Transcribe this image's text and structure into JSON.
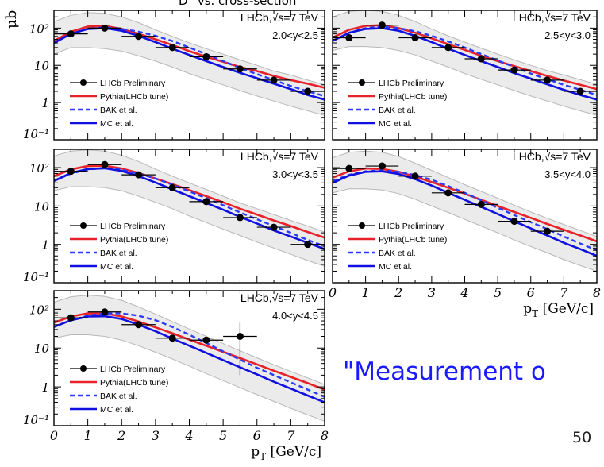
{
  "page": {
    "header_text": "D° vs. cross-section",
    "y_unit": "μb",
    "quote": "\"Measurement o",
    "page_number": "50"
  },
  "colors": {
    "data": "#000000",
    "pythia": "#e8222a",
    "bak": "#2a3bff",
    "mc": "#1010e0",
    "band": "#d9d9d9"
  },
  "chart_data": [
    {
      "type": "line",
      "title": "LHCb,√s=7 TeV",
      "y_range_label": "2.0<y<2.5",
      "xlabel": "",
      "ylabel": "μb",
      "xlim": [
        0,
        8
      ],
      "ylim": [
        0.1,
        300
      ],
      "log_y": true,
      "x_ticks": [],
      "y_ticks": [
        "10²",
        "10",
        "1",
        "10⁻¹"
      ],
      "legend": [
        "LHCb Preliminary",
        "Pythia(LHCb tune)",
        "BAK et al.",
        "MC et al."
      ],
      "series": [
        {
          "name": "LHCb Preliminary",
          "x": [
            0.5,
            1.5,
            2.5,
            3.5,
            4.5,
            5.5,
            6.5,
            7.5
          ],
          "y": [
            70,
            100,
            60,
            30,
            17,
            8,
            4,
            2
          ],
          "x_err": 0.5
        },
        {
          "name": "Pythia(LHCb tune)",
          "x": [
            0,
            0.5,
            1,
            1.5,
            2,
            2.5,
            3,
            3.5,
            4,
            4.5,
            5,
            5.5,
            6,
            6.5,
            7,
            7.5,
            8
          ],
          "y": [
            45,
            80,
            110,
            115,
            95,
            70,
            50,
            35,
            24,
            17,
            12.5,
            9,
            7,
            5.2,
            4,
            3.2,
            2.5
          ]
        },
        {
          "name": "BAK et al.",
          "x": [
            0,
            0.5,
            1,
            1.5,
            2,
            2.5,
            3,
            3.5,
            4,
            4.5,
            5,
            5.5,
            6,
            6.5,
            7,
            7.5,
            8
          ],
          "y": [
            40,
            70,
            95,
            105,
            95,
            80,
            62,
            45,
            30,
            20,
            13,
            8.5,
            5.8,
            4,
            2.8,
            2,
            1.5
          ]
        },
        {
          "name": "MC et al.",
          "x": [
            0,
            0.5,
            1,
            1.5,
            2,
            2.5,
            3,
            3.5,
            4,
            4.5,
            5,
            5.5,
            6,
            6.5,
            7,
            7.5,
            8
          ],
          "y": [
            40,
            70,
            95,
            100,
            85,
            62,
            42,
            28,
            19,
            13,
            9,
            6.3,
            4.5,
            3.2,
            2.3,
            1.6,
            1.2
          ]
        }
      ],
      "band": {
        "x": [
          0,
          0.5,
          1,
          1.5,
          2,
          2.5,
          3,
          3.5,
          4,
          4.5,
          5,
          5.5,
          6,
          6.5,
          7,
          7.5,
          8
        ],
        "upper": [
          150,
          220,
          260,
          250,
          200,
          140,
          90,
          60,
          40,
          28,
          20,
          14,
          10,
          7,
          5.5,
          4,
          3
        ],
        "lower": [
          20,
          30,
          30,
          28,
          24,
          18,
          13,
          9,
          6,
          4.2,
          3,
          2.1,
          1.5,
          1.1,
          0.8,
          0.6,
          0.45
        ]
      }
    },
    {
      "type": "line",
      "title": "LHCb,√s=7 TeV",
      "y_range_label": "2.5<y<3.0",
      "xlabel": "",
      "ylabel": "",
      "xlim": [
        0,
        8
      ],
      "ylim": [
        0.1,
        300
      ],
      "log_y": true,
      "x_ticks": [],
      "y_ticks": [],
      "legend": [
        "LHCb Preliminary",
        "Pythia(LHCb tune)",
        "BAK et al.",
        "MC et al."
      ],
      "series": [
        {
          "name": "LHCb Preliminary",
          "x": [
            0.5,
            1.5,
            2.5,
            3.5,
            4.5,
            5.5,
            6.5,
            7.5
          ],
          "y": [
            55,
            120,
            55,
            30,
            15,
            7.5,
            4,
            2
          ],
          "x_err": 0.5
        },
        {
          "name": "Pythia(LHCb tune)",
          "x": [
            0,
            0.5,
            1,
            1.5,
            2,
            2.5,
            3,
            3.5,
            4,
            4.5,
            5,
            5.5,
            6,
            6.5,
            7,
            7.5,
            8
          ],
          "y": [
            55,
            90,
            115,
            120,
            100,
            75,
            53,
            37,
            26,
            18,
            13,
            9.5,
            7,
            5.2,
            3.9,
            3,
            2.3
          ]
        },
        {
          "name": "BAK et al.",
          "x": [
            0,
            0.5,
            1,
            1.5,
            2,
            2.5,
            3,
            3.5,
            4,
            4.5,
            5,
            5.5,
            6,
            6.5,
            7,
            7.5,
            8
          ],
          "y": [
            45,
            75,
            100,
            110,
            100,
            82,
            62,
            44,
            30,
            20,
            13.5,
            9,
            6,
            4.2,
            3,
            2.2,
            1.6
          ]
        },
        {
          "name": "MC et al.",
          "x": [
            0,
            0.5,
            1,
            1.5,
            2,
            2.5,
            3,
            3.5,
            4,
            4.5,
            5,
            5.5,
            6,
            6.5,
            7,
            7.5,
            8
          ],
          "y": [
            45,
            75,
            95,
            100,
            85,
            62,
            42,
            28,
            19,
            13,
            9,
            6.2,
            4.4,
            3.1,
            2.2,
            1.6,
            1.2
          ]
        }
      ],
      "band": {
        "x": [
          0,
          0.5,
          1,
          1.5,
          2,
          2.5,
          3,
          3.5,
          4,
          4.5,
          5,
          5.5,
          6,
          6.5,
          7,
          7.5,
          8
        ],
        "upper": [
          200,
          280,
          300,
          280,
          220,
          150,
          95,
          62,
          42,
          29,
          20,
          14,
          10,
          7.2,
          5.5,
          4.1,
          3.1
        ],
        "lower": [
          25,
          32,
          32,
          30,
          25,
          19,
          13,
          9,
          6,
          4.2,
          3,
          2.1,
          1.5,
          1.1,
          0.8,
          0.6,
          0.45
        ]
      }
    },
    {
      "type": "line",
      "title": "LHCb,√s=7 TeV",
      "y_range_label": "3.0<y<3.5",
      "xlabel": "",
      "ylabel": "",
      "xlim": [
        0,
        8
      ],
      "ylim": [
        0.1,
        300
      ],
      "log_y": true,
      "x_ticks": [],
      "y_ticks": [
        "10²",
        "10",
        "1",
        "10⁻¹"
      ],
      "legend": [
        "LHCb Preliminary",
        "Pythia(LHCb tune)",
        "BAK et al.",
        "MC et al."
      ],
      "series": [
        {
          "name": "LHCb Preliminary",
          "x": [
            0.5,
            1.5,
            2.5,
            3.5,
            4.5,
            5.5,
            6.5,
            7.5
          ],
          "y": [
            80,
            120,
            65,
            30,
            13,
            5,
            2.8,
            1
          ],
          "x_err": 0.5
        },
        {
          "name": "Pythia(LHCb tune)",
          "x": [
            0,
            0.5,
            1,
            1.5,
            2,
            2.5,
            3,
            3.5,
            4,
            4.5,
            5,
            5.5,
            6,
            6.5,
            7,
            7.5,
            8
          ],
          "y": [
            60,
            90,
            110,
            112,
            95,
            72,
            52,
            37,
            26,
            18,
            12.5,
            8.5,
            6,
            4.2,
            3,
            2.1,
            1.5
          ]
        },
        {
          "name": "BAK et al.",
          "x": [
            0,
            0.5,
            1,
            1.5,
            2,
            2.5,
            3,
            3.5,
            4,
            4.5,
            5,
            5.5,
            6,
            6.5,
            7,
            7.5,
            8
          ],
          "y": [
            45,
            70,
            90,
            98,
            88,
            70,
            52,
            36,
            24,
            16,
            10.5,
            6.8,
            4.5,
            3,
            2,
            1.3,
            0.9
          ]
        },
        {
          "name": "MC et al.",
          "x": [
            0,
            0.5,
            1,
            1.5,
            2,
            2.5,
            3,
            3.5,
            4,
            4.5,
            5,
            5.5,
            6,
            6.5,
            7,
            7.5,
            8
          ],
          "y": [
            45,
            72,
            92,
            96,
            82,
            60,
            41,
            27,
            18,
            12,
            8,
            5.2,
            3.5,
            2.3,
            1.6,
            1.1,
            0.75
          ]
        }
      ],
      "band": {
        "x": [
          0,
          0.5,
          1,
          1.5,
          2,
          2.5,
          3,
          3.5,
          4,
          4.5,
          5,
          5.5,
          6,
          6.5,
          7,
          7.5,
          8
        ],
        "upper": [
          200,
          270,
          290,
          270,
          210,
          145,
          92,
          60,
          40,
          27,
          18,
          12,
          8.5,
          6,
          4.2,
          3,
          2.1
        ],
        "lower": [
          25,
          32,
          32,
          30,
          25,
          18,
          12.5,
          8.5,
          5.5,
          3.7,
          2.5,
          1.7,
          1.15,
          0.8,
          0.55,
          0.38,
          0.27
        ]
      }
    },
    {
      "type": "line",
      "title": "LHCb,√s=7 TeV",
      "y_range_label": "3.5<y<4.0",
      "xlabel": "p_T [GeV/c]",
      "ylabel": "",
      "xlim": [
        0,
        8
      ],
      "ylim": [
        0.1,
        300
      ],
      "log_y": true,
      "x_ticks": [
        "0",
        "1",
        "2",
        "3",
        "4",
        "5",
        "6",
        "7",
        "8"
      ],
      "y_ticks": [],
      "legend": [
        "LHCb Preliminary",
        "Pythia(LHCb tune)",
        "BAK et al.",
        "MC et al."
      ],
      "series": [
        {
          "name": "LHCb Preliminary",
          "x": [
            0.5,
            1.5,
            2.5,
            3.5,
            4.5,
            5.5,
            6.5
          ],
          "y": [
            95,
            110,
            60,
            22,
            11,
            4,
            2.2
          ],
          "x_err": 0.5
        },
        {
          "name": "Pythia(LHCb tune)",
          "x": [
            0,
            0.5,
            1,
            1.5,
            2,
            2.5,
            3,
            3.5,
            4,
            4.5,
            5,
            5.5,
            6,
            6.5,
            7,
            7.5,
            8
          ],
          "y": [
            55,
            80,
            95,
            92,
            78,
            58,
            42,
            30,
            21,
            14.5,
            10,
            7,
            4.9,
            3.4,
            2.4,
            1.7,
            1.2
          ]
        },
        {
          "name": "BAK et al.",
          "x": [
            0,
            0.5,
            1,
            1.5,
            2,
            2.5,
            3,
            3.5,
            4,
            4.5,
            5,
            5.5,
            6,
            6.5,
            7,
            7.5,
            8
          ],
          "y": [
            45,
            65,
            80,
            85,
            77,
            64,
            48,
            33,
            22,
            14,
            9,
            5.8,
            3.8,
            2.5,
            1.6,
            1.05,
            0.7
          ]
        },
        {
          "name": "MC et al.",
          "x": [
            0,
            0.5,
            1,
            1.5,
            2,
            2.5,
            3,
            3.5,
            4,
            4.5,
            5,
            5.5,
            6,
            6.5,
            7,
            7.5,
            8
          ],
          "y": [
            40,
            62,
            78,
            80,
            68,
            50,
            34,
            22,
            14.5,
            9.5,
            6.2,
            4,
            2.6,
            1.7,
            1.1,
            0.75,
            0.5
          ]
        }
      ],
      "band": {
        "x": [
          0,
          0.5,
          1,
          1.5,
          2,
          2.5,
          3,
          3.5,
          4,
          4.5,
          5,
          5.5,
          6,
          6.5,
          7,
          7.5,
          8
        ],
        "upper": [
          180,
          250,
          270,
          250,
          195,
          130,
          85,
          55,
          36,
          24,
          16,
          10.5,
          7,
          4.8,
          3.3,
          2.3,
          1.6
        ],
        "lower": [
          22,
          28,
          28,
          26,
          21,
          15,
          10,
          6.8,
          4.5,
          3,
          2,
          1.3,
          0.88,
          0.6,
          0.4,
          0.28,
          0.2
        ]
      }
    },
    {
      "type": "line",
      "title": "LHCb,√s=7 TeV",
      "y_range_label": "4.0<y<4.5",
      "xlabel": "p_T [GeV/c]",
      "ylabel": "",
      "xlim": [
        0,
        8
      ],
      "ylim": [
        0.1,
        300
      ],
      "log_y": true,
      "x_ticks": [
        "0",
        "1",
        "2",
        "3",
        "4",
        "5",
        "6",
        "7",
        "8"
      ],
      "y_ticks": [
        "10²",
        "10",
        "1",
        "10⁻¹"
      ],
      "legend": [
        "LHCb Preliminary",
        "Pythia(LHCb tune)",
        "BAK et al.",
        "MC et al."
      ],
      "series": [
        {
          "name": "LHCb Preliminary",
          "x": [
            0.5,
            1.5,
            2.5,
            3.5,
            4.5,
            5.5
          ],
          "y": [
            60,
            85,
            40,
            18,
            16,
            20
          ],
          "x_err": 0.5,
          "y_err_lo": [
            0,
            0,
            0,
            0,
            0,
            18
          ],
          "y_err_hi": [
            0,
            0,
            0,
            0,
            0,
            25
          ]
        },
        {
          "name": "Pythia(LHCb tune)",
          "x": [
            0,
            0.5,
            1,
            1.5,
            2,
            2.5,
            3,
            3.5,
            4,
            4.5,
            5,
            5.5,
            6,
            6.5,
            7,
            7.5,
            8
          ],
          "y": [
            45,
            65,
            78,
            78,
            65,
            48,
            34,
            24,
            16.5,
            11.5,
            8,
            5.5,
            3.8,
            2.6,
            1.8,
            1.25,
            0.85
          ]
        },
        {
          "name": "BAK et al.",
          "x": [
            0,
            0.5,
            1,
            1.5,
            2,
            2.5,
            3,
            3.5,
            4,
            4.5,
            5,
            5.5,
            6,
            6.5,
            7,
            7.5,
            8
          ],
          "y": [
            35,
            52,
            68,
            78,
            78,
            68,
            52,
            35,
            22,
            13.5,
            8.2,
            5,
            3.1,
            2,
            1.3,
            0.85,
            0.55
          ]
        },
        {
          "name": "MC et al.",
          "x": [
            0,
            0.5,
            1,
            1.5,
            2,
            2.5,
            3,
            3.5,
            4,
            4.5,
            5,
            5.5,
            6,
            6.5,
            7,
            7.5,
            8
          ],
          "y": [
            35,
            52,
            65,
            66,
            56,
            40,
            27,
            17.5,
            11.5,
            7.5,
            4.9,
            3.2,
            2.1,
            1.35,
            0.9,
            0.6,
            0.4
          ]
        }
      ],
      "band": {
        "x": [
          0,
          0.5,
          1,
          1.5,
          2,
          2.5,
          3,
          3.5,
          4,
          4.5,
          5,
          5.5,
          6,
          6.5,
          7,
          7.5,
          8
        ],
        "upper": [
          150,
          210,
          230,
          215,
          170,
          115,
          75,
          48,
          31,
          20,
          13,
          8.5,
          5.6,
          3.7,
          2.5,
          1.7,
          1.15
        ],
        "lower": [
          18,
          22,
          22,
          20,
          16,
          11.5,
          7.8,
          5.2,
          3.4,
          2.2,
          1.45,
          0.95,
          0.63,
          0.42,
          0.28,
          0.19,
          0.13
        ]
      }
    }
  ]
}
